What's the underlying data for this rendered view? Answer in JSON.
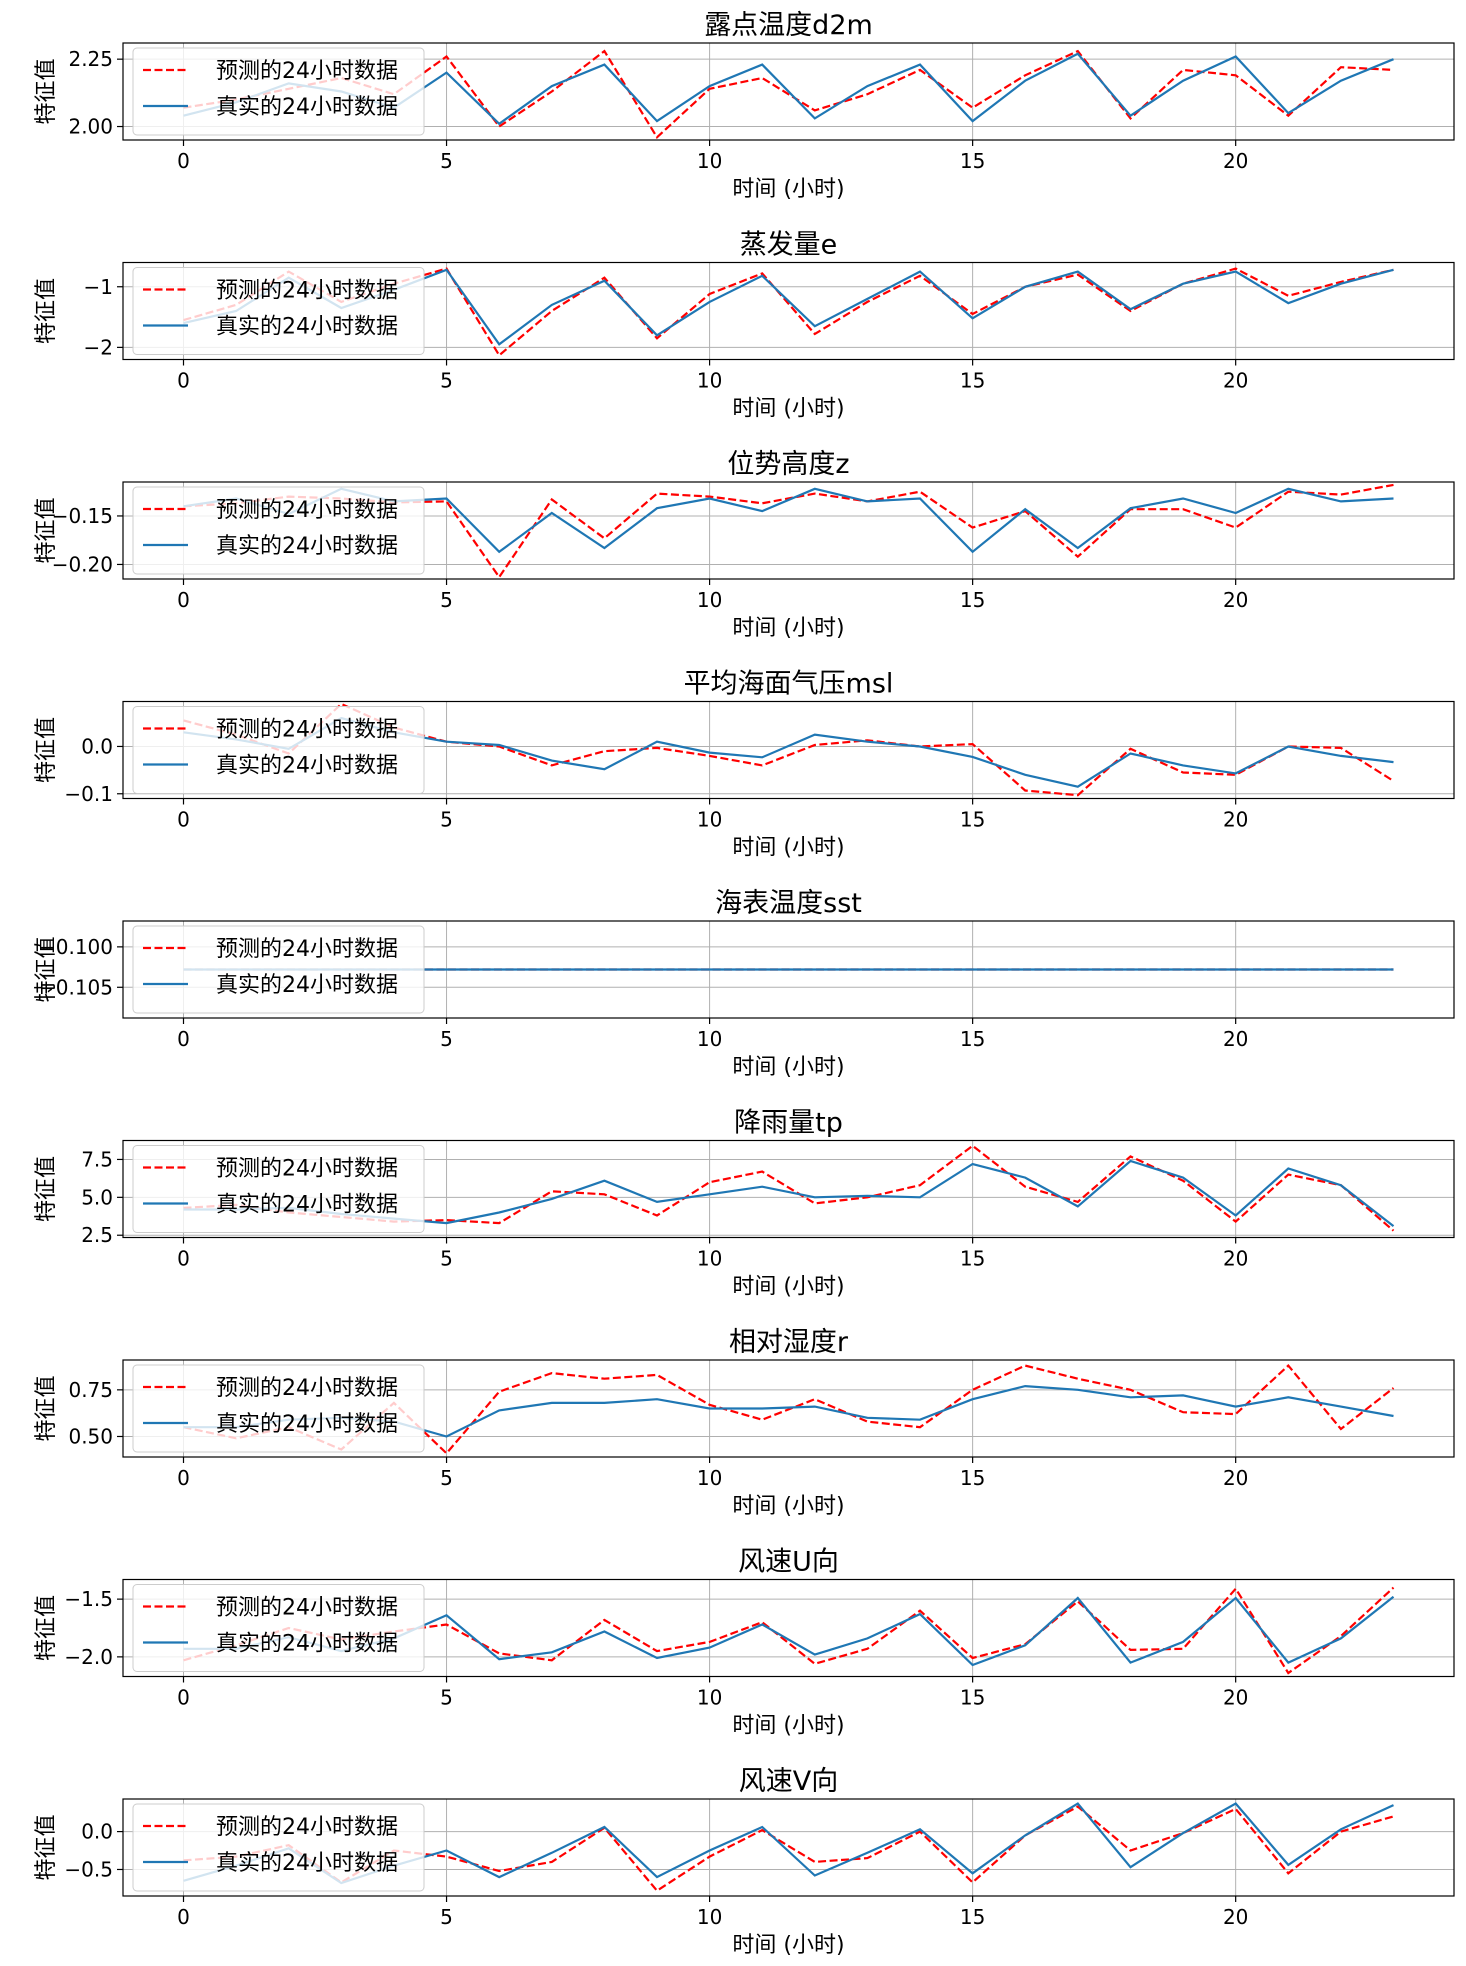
{
  "figure": {
    "legend_pred": "预测的24小时数据",
    "legend_true": "真实的24小时数据",
    "xlabel": "时间 (小时)",
    "ylabel": "特征值",
    "pred_color": "#ff0000",
    "true_color": "#1f77b4"
  },
  "chart_data": [
    {
      "type": "line",
      "title": "露点温度d2m",
      "xlabel": "时间 (小时)",
      "ylabel": "特征值",
      "xlim": [
        -1.15,
        24.15
      ],
      "ylim": [
        1.95,
        2.31
      ],
      "xticks": [
        0,
        5,
        10,
        15,
        20
      ],
      "yticks": [
        2.0,
        2.25
      ],
      "ytick_labels": [
        "2.00",
        "2.25"
      ],
      "grid": true,
      "legend_position": "upper-left",
      "x": [
        0,
        1,
        2,
        3,
        4,
        5,
        6,
        7,
        8,
        9,
        10,
        11,
        12,
        13,
        14,
        15,
        16,
        17,
        18,
        19,
        20,
        21,
        22,
        23
      ],
      "series": [
        {
          "name": "预测的24小时数据",
          "style": "dashed",
          "color": "#ff0000",
          "values": [
            2.07,
            2.1,
            2.14,
            2.18,
            2.12,
            2.26,
            2.0,
            2.13,
            2.28,
            1.96,
            2.14,
            2.18,
            2.06,
            2.12,
            2.21,
            2.07,
            2.19,
            2.28,
            2.03,
            2.21,
            2.19,
            2.04,
            2.22,
            2.21
          ]
        },
        {
          "name": "真实的24小时数据",
          "style": "solid",
          "color": "#1f77b4",
          "values": [
            2.04,
            2.09,
            2.16,
            2.13,
            2.07,
            2.2,
            2.01,
            2.15,
            2.23,
            2.02,
            2.15,
            2.23,
            2.03,
            2.15,
            2.23,
            2.02,
            2.17,
            2.27,
            2.04,
            2.17,
            2.26,
            2.05,
            2.17,
            2.25
          ]
        }
      ]
    },
    {
      "type": "line",
      "title": "蒸发量e",
      "xlabel": "时间 (小时)",
      "ylabel": "特征值",
      "xlim": [
        -1.15,
        24.15
      ],
      "ylim": [
        -2.2,
        -0.6
      ],
      "xticks": [
        0,
        5,
        10,
        15,
        20
      ],
      "yticks": [
        -2,
        -1
      ],
      "ytick_labels": [
        "−2",
        "−1"
      ],
      "grid": true,
      "legend_position": "upper-left",
      "x": [
        0,
        1,
        2,
        3,
        4,
        5,
        6,
        7,
        8,
        9,
        10,
        11,
        12,
        13,
        14,
        15,
        16,
        17,
        18,
        19,
        20,
        21,
        22,
        23
      ],
      "series": [
        {
          "name": "预测的24小时数据",
          "style": "dashed",
          "color": "#ff0000",
          "values": [
            -1.55,
            -1.3,
            -0.75,
            -1.25,
            -0.95,
            -0.7,
            -2.13,
            -1.4,
            -0.85,
            -1.85,
            -1.12,
            -0.78,
            -1.78,
            -1.25,
            -0.82,
            -1.45,
            -1.0,
            -0.8,
            -1.4,
            -0.95,
            -0.7,
            -1.15,
            -0.92,
            -0.72
          ]
        },
        {
          "name": "真实的24小时数据",
          "style": "solid",
          "color": "#1f77b4",
          "values": [
            -1.6,
            -1.4,
            -0.85,
            -1.35,
            -1.05,
            -0.72,
            -1.95,
            -1.3,
            -0.9,
            -1.8,
            -1.25,
            -0.82,
            -1.65,
            -1.2,
            -0.75,
            -1.52,
            -1.0,
            -0.75,
            -1.37,
            -0.95,
            -0.75,
            -1.27,
            -0.95,
            -0.72
          ]
        }
      ]
    },
    {
      "type": "line",
      "title": "位势高度z",
      "xlabel": "时间 (小时)",
      "ylabel": "特征值",
      "xlim": [
        -1.15,
        24.15
      ],
      "ylim": [
        -0.215,
        -0.115
      ],
      "xticks": [
        0,
        5,
        10,
        15,
        20
      ],
      "yticks": [
        -0.2,
        -0.15
      ],
      "ytick_labels": [
        "−0.20",
        "−0.15"
      ],
      "grid": true,
      "legend_position": "upper-left",
      "x": [
        0,
        1,
        2,
        3,
        4,
        5,
        6,
        7,
        8,
        9,
        10,
        11,
        12,
        13,
        14,
        15,
        16,
        17,
        18,
        19,
        20,
        21,
        22,
        23
      ],
      "series": [
        {
          "name": "预测的24小时数据",
          "style": "dashed",
          "color": "#ff0000",
          "values": [
            -0.14,
            -0.137,
            -0.13,
            -0.132,
            -0.136,
            -0.135,
            -0.213,
            -0.133,
            -0.173,
            -0.127,
            -0.13,
            -0.137,
            -0.127,
            -0.135,
            -0.125,
            -0.162,
            -0.145,
            -0.192,
            -0.143,
            -0.143,
            -0.162,
            -0.125,
            -0.128,
            -0.118
          ]
        },
        {
          "name": "真实的24小时数据",
          "style": "solid",
          "color": "#1f77b4",
          "values": [
            -0.14,
            -0.132,
            -0.148,
            -0.122,
            -0.135,
            -0.132,
            -0.187,
            -0.147,
            -0.183,
            -0.142,
            -0.132,
            -0.145,
            -0.122,
            -0.135,
            -0.132,
            -0.187,
            -0.143,
            -0.183,
            -0.142,
            -0.132,
            -0.147,
            -0.122,
            -0.135,
            -0.132
          ]
        }
      ]
    },
    {
      "type": "line",
      "title": "平均海面气压msl",
      "xlabel": "时间 (小时)",
      "ylabel": "特征值",
      "xlim": [
        -1.15,
        24.15
      ],
      "ylim": [
        -0.11,
        0.095
      ],
      "xticks": [
        0,
        5,
        10,
        15,
        20
      ],
      "yticks": [
        -0.1,
        0.0
      ],
      "ytick_labels": [
        "−0.1",
        "0.0"
      ],
      "grid": true,
      "legend_position": "upper-left",
      "x": [
        0,
        1,
        2,
        3,
        4,
        5,
        6,
        7,
        8,
        9,
        10,
        11,
        12,
        13,
        14,
        15,
        16,
        17,
        18,
        19,
        20,
        21,
        22,
        23
      ],
      "series": [
        {
          "name": "预测的24小时数据",
          "style": "dashed",
          "color": "#ff0000",
          "values": [
            0.055,
            0.025,
            -0.015,
            0.09,
            0.04,
            0.01,
            0.0,
            -0.04,
            -0.01,
            -0.003,
            -0.02,
            -0.04,
            0.003,
            0.013,
            0.0,
            0.005,
            -0.093,
            -0.103,
            -0.005,
            -0.055,
            -0.06,
            0.0,
            -0.003,
            -0.073
          ]
        },
        {
          "name": "真实的24小时数据",
          "style": "solid",
          "color": "#1f77b4",
          "values": [
            0.03,
            0.015,
            -0.005,
            0.06,
            0.03,
            0.01,
            0.003,
            -0.03,
            -0.048,
            0.01,
            -0.013,
            -0.023,
            0.025,
            0.01,
            0.0,
            -0.022,
            -0.06,
            -0.085,
            -0.015,
            -0.04,
            -0.057,
            0.0,
            -0.02,
            -0.033
          ]
        }
      ]
    },
    {
      "type": "line",
      "title": "海表温度sst",
      "xlabel": "时间 (小时)",
      "ylabel": "特征值",
      "xlim": [
        -1.15,
        24.15
      ],
      "ylim": [
        -0.1088,
        -0.0968
      ],
      "xticks": [
        0,
        5,
        10,
        15,
        20
      ],
      "yticks": [
        -0.105,
        -0.1
      ],
      "ytick_labels": [
        "−0.105",
        "−0.100"
      ],
      "grid": true,
      "legend_position": "upper-left",
      "x": [
        0,
        1,
        2,
        3,
        4,
        5,
        6,
        7,
        8,
        9,
        10,
        11,
        12,
        13,
        14,
        15,
        16,
        17,
        18,
        19,
        20,
        21,
        22,
        23
      ],
      "series": [
        {
          "name": "预测的24小时数据",
          "style": "dashed",
          "color": "#ff0000",
          "values": [
            -0.1028,
            -0.1028,
            -0.1028,
            -0.1028,
            -0.1028,
            -0.1028,
            -0.1028,
            -0.1028,
            -0.1028,
            -0.1028,
            -0.1028,
            -0.1028,
            -0.1028,
            -0.1028,
            -0.1028,
            -0.1028,
            -0.1028,
            -0.1028,
            -0.1028,
            -0.1028,
            -0.1028,
            -0.1028,
            -0.1028,
            -0.1028
          ]
        },
        {
          "name": "真实的24小时数据",
          "style": "solid",
          "color": "#1f77b4",
          "values": [
            -0.1028,
            -0.1028,
            -0.1028,
            -0.1028,
            -0.1028,
            -0.1028,
            -0.1028,
            -0.1028,
            -0.1028,
            -0.1028,
            -0.1028,
            -0.1028,
            -0.1028,
            -0.1028,
            -0.1028,
            -0.1028,
            -0.1028,
            -0.1028,
            -0.1028,
            -0.1028,
            -0.1028,
            -0.1028,
            -0.1028,
            -0.1028
          ]
        }
      ]
    },
    {
      "type": "line",
      "title": "降雨量tp",
      "xlabel": "时间 (小时)",
      "ylabel": "特征值",
      "xlim": [
        -1.15,
        24.15
      ],
      "ylim": [
        2.35,
        8.75
      ],
      "xticks": [
        0,
        5,
        10,
        15,
        20
      ],
      "yticks": [
        2.5,
        5.0,
        7.5
      ],
      "ytick_labels": [
        "2.5",
        "5.0",
        "7.5"
      ],
      "grid": true,
      "legend_position": "upper-left",
      "x": [
        0,
        1,
        2,
        3,
        4,
        5,
        6,
        7,
        8,
        9,
        10,
        11,
        12,
        13,
        14,
        15,
        16,
        17,
        18,
        19,
        20,
        21,
        22,
        23
      ],
      "series": [
        {
          "name": "预测的24小时数据",
          "style": "dashed",
          "color": "#ff0000",
          "values": [
            4.3,
            4.5,
            4.0,
            3.7,
            3.4,
            3.5,
            3.3,
            5.4,
            5.2,
            3.8,
            6.0,
            6.7,
            4.6,
            5.0,
            5.8,
            8.4,
            5.7,
            4.7,
            7.7,
            6.1,
            3.4,
            6.5,
            5.8,
            2.8
          ]
        },
        {
          "name": "真实的24小时数据",
          "style": "solid",
          "color": "#1f77b4",
          "values": [
            4.2,
            4.2,
            4.3,
            3.9,
            3.6,
            3.3,
            4.0,
            4.9,
            6.1,
            4.7,
            5.2,
            5.7,
            5.0,
            5.1,
            5.0,
            7.2,
            6.3,
            4.4,
            7.4,
            6.3,
            3.8,
            6.9,
            5.8,
            3.1
          ]
        }
      ]
    },
    {
      "type": "line",
      "title": "相对湿度r",
      "xlabel": "时间 (小时)",
      "ylabel": "特征值",
      "xlim": [
        -1.15,
        24.15
      ],
      "ylim": [
        0.39,
        0.91
      ],
      "xticks": [
        0,
        5,
        10,
        15,
        20
      ],
      "yticks": [
        0.5,
        0.75
      ],
      "ytick_labels": [
        "0.50",
        "0.75"
      ],
      "grid": true,
      "legend_position": "upper-left",
      "x": [
        0,
        1,
        2,
        3,
        4,
        5,
        6,
        7,
        8,
        9,
        10,
        11,
        12,
        13,
        14,
        15,
        16,
        17,
        18,
        19,
        20,
        21,
        22,
        23
      ],
      "series": [
        {
          "name": "预测的24小时数据",
          "style": "dashed",
          "color": "#ff0000",
          "values": [
            0.55,
            0.49,
            0.55,
            0.43,
            0.68,
            0.41,
            0.74,
            0.84,
            0.81,
            0.83,
            0.67,
            0.59,
            0.7,
            0.58,
            0.55,
            0.75,
            0.88,
            0.81,
            0.75,
            0.63,
            0.62,
            0.88,
            0.54,
            0.76
          ]
        },
        {
          "name": "真实的24小时数据",
          "style": "solid",
          "color": "#1f77b4",
          "values": [
            0.55,
            0.55,
            0.59,
            0.6,
            0.58,
            0.5,
            0.64,
            0.68,
            0.68,
            0.7,
            0.65,
            0.65,
            0.66,
            0.6,
            0.59,
            0.7,
            0.77,
            0.75,
            0.71,
            0.72,
            0.66,
            0.71,
            0.66,
            0.61
          ]
        }
      ]
    },
    {
      "type": "line",
      "title": "风速U向",
      "xlabel": "时间 (小时)",
      "ylabel": "特征值",
      "xlim": [
        -1.15,
        24.15
      ],
      "ylim": [
        -2.17,
        -1.33
      ],
      "xticks": [
        0,
        5,
        10,
        15,
        20
      ],
      "yticks": [
        -2.0,
        -1.5
      ],
      "ytick_labels": [
        "−2.0",
        "−1.5"
      ],
      "grid": true,
      "legend_position": "upper-left",
      "x": [
        0,
        1,
        2,
        3,
        4,
        5,
        6,
        7,
        8,
        9,
        10,
        11,
        12,
        13,
        14,
        15,
        16,
        17,
        18,
        19,
        20,
        21,
        22,
        23
      ],
      "series": [
        {
          "name": "预测的24小时数据",
          "style": "dashed",
          "color": "#ff0000",
          "values": [
            -2.03,
            -1.9,
            -1.75,
            -1.85,
            -1.78,
            -1.72,
            -1.97,
            -2.03,
            -1.68,
            -1.95,
            -1.87,
            -1.7,
            -2.06,
            -1.93,
            -1.6,
            -2.01,
            -1.89,
            -1.52,
            -1.94,
            -1.93,
            -1.41,
            -2.14,
            -1.82,
            -1.4
          ]
        },
        {
          "name": "真实的24小时数据",
          "style": "solid",
          "color": "#1f77b4",
          "values": [
            -1.93,
            -1.93,
            -1.83,
            -1.95,
            -1.84,
            -1.64,
            -2.02,
            -1.96,
            -1.78,
            -2.01,
            -1.92,
            -1.72,
            -1.98,
            -1.84,
            -1.63,
            -2.07,
            -1.9,
            -1.49,
            -2.05,
            -1.87,
            -1.49,
            -2.05,
            -1.84,
            -1.48
          ]
        }
      ]
    },
    {
      "type": "line",
      "title": "风速V向",
      "xlabel": "时间 (小时)",
      "ylabel": "特征值",
      "xlim": [
        -1.15,
        24.15
      ],
      "ylim": [
        -0.85,
        0.43
      ],
      "xticks": [
        0,
        5,
        10,
        15,
        20
      ],
      "yticks": [
        -0.5,
        0.0
      ],
      "ytick_labels": [
        "−0.5",
        "0.0"
      ],
      "grid": true,
      "legend_position": "upper-left",
      "x": [
        0,
        1,
        2,
        3,
        4,
        5,
        6,
        7,
        8,
        9,
        10,
        11,
        12,
        13,
        14,
        15,
        16,
        17,
        18,
        19,
        20,
        21,
        22,
        23
      ],
      "series": [
        {
          "name": "预测的24小时数据",
          "style": "dashed",
          "color": "#ff0000",
          "values": [
            -0.38,
            -0.33,
            -0.18,
            -0.67,
            -0.25,
            -0.33,
            -0.52,
            -0.4,
            0.05,
            -0.78,
            -0.33,
            0.02,
            -0.4,
            -0.35,
            0.0,
            -0.67,
            -0.05,
            0.33,
            -0.25,
            -0.02,
            0.3,
            -0.55,
            0.0,
            0.2
          ]
        },
        {
          "name": "真实的24小时数据",
          "style": "solid",
          "color": "#1f77b4",
          "values": [
            -0.65,
            -0.45,
            -0.22,
            -0.68,
            -0.45,
            -0.25,
            -0.6,
            -0.28,
            0.06,
            -0.6,
            -0.25,
            0.06,
            -0.58,
            -0.28,
            0.03,
            -0.55,
            -0.05,
            0.37,
            -0.47,
            -0.02,
            0.37,
            -0.44,
            0.03,
            0.35
          ]
        }
      ]
    }
  ]
}
